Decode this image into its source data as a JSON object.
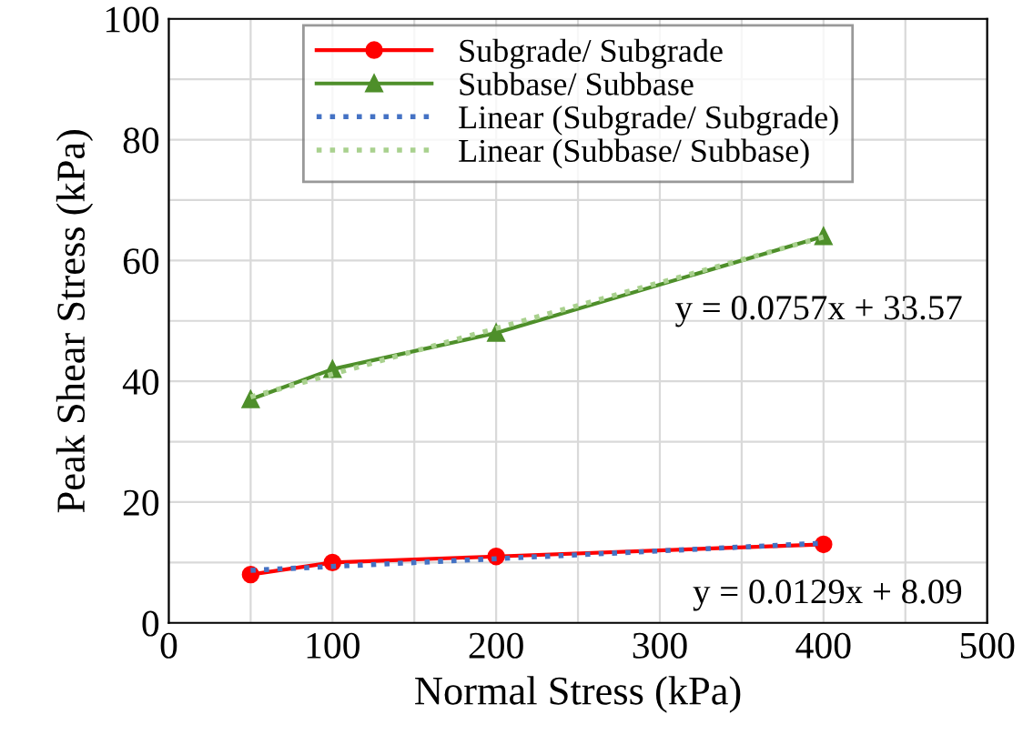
{
  "chart_data": {
    "type": "line",
    "xlabel": "Normal Stress (kPa)",
    "ylabel": "Peak Shear Stress (kPa)",
    "xlim": [
      0,
      500
    ],
    "xticks": [
      0,
      100,
      200,
      300,
      400,
      500
    ],
    "ylim": [
      0,
      100
    ],
    "yticks": [
      0,
      20,
      40,
      60,
      80,
      100
    ],
    "grid": true,
    "legend": "top",
    "series": [
      {
        "name": "Subgrade/ Subgrade",
        "color": "#ff0000",
        "x": [
          50,
          100,
          200,
          400
        ],
        "values": [
          8,
          10,
          11,
          13
        ],
        "marker": "circle",
        "line_style": "solid"
      },
      {
        "name": "Subbase/ Subbase",
        "color": "#4e8f2a",
        "x": [
          50,
          100,
          200,
          400
        ],
        "values": [
          37,
          42,
          48,
          64
        ],
        "marker": "triangle",
        "line_style": "solid"
      },
      {
        "name": "Linear (Subgrade/ Subgrade)",
        "color": "#4472c4",
        "x": [
          50,
          400
        ],
        "values": [
          8.7,
          13.2
        ],
        "marker": "none",
        "line_style": "dotted"
      },
      {
        "name": "Linear (Subbase/ Subbase)",
        "color": "#a9d18e",
        "x": [
          50,
          400
        ],
        "values": [
          37.4,
          63.9
        ],
        "marker": "none",
        "line_style": "dotted"
      }
    ],
    "annotations": [
      "y = 0.0757x + 33.57",
      "y = 0.0129x + 8.09"
    ]
  }
}
